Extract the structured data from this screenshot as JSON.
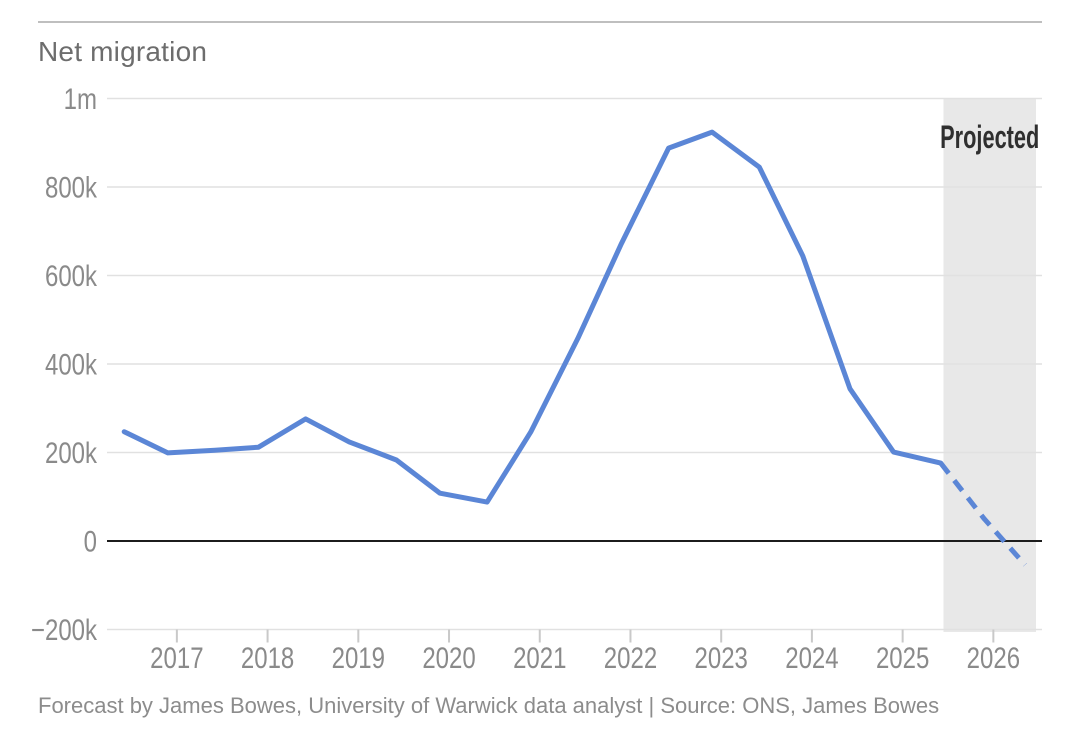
{
  "page": {
    "title": "Net migration",
    "footer": "Forecast by James Bowes, University of Warwick data analyst | Source: ONS, James Bowes"
  },
  "chart_data": {
    "type": "line",
    "title": "Net migration",
    "xlabel": "",
    "ylabel": "",
    "xlim": [
      2016.23,
      2026.47
    ],
    "ylim": [
      -200000,
      1000000
    ],
    "grid": "horizontal-only",
    "legend": "none",
    "x_ticks": [
      2017,
      2018,
      2019,
      2020,
      2021,
      2022,
      2023,
      2024,
      2025,
      2026
    ],
    "y_ticks": [
      {
        "value": 1000000,
        "label": "1m"
      },
      {
        "value": 800000,
        "label": "800k"
      },
      {
        "value": 600000,
        "label": "600k"
      },
      {
        "value": 400000,
        "label": "400k"
      },
      {
        "value": 200000,
        "label": "200k"
      },
      {
        "value": 0,
        "label": "0"
      },
      {
        "value": -200000,
        "label": "−200k"
      }
    ],
    "zero_line": true,
    "projection_band": {
      "label": "Projected",
      "from": 2025.45,
      "to": 2026.47
    },
    "series": [
      {
        "name": "Net migration (actual)",
        "style": "solid",
        "points": [
          [
            2016.42,
            247000
          ],
          [
            2016.9,
            199000
          ],
          [
            2017.42,
            205000
          ],
          [
            2017.9,
            212000
          ],
          [
            2018.42,
            276000
          ],
          [
            2018.9,
            224000
          ],
          [
            2019.42,
            183000
          ],
          [
            2019.9,
            108000
          ],
          [
            2020.42,
            88000
          ],
          [
            2020.9,
            246000
          ],
          [
            2021.42,
            458000
          ],
          [
            2021.9,
            672000
          ],
          [
            2022.42,
            888000
          ],
          [
            2022.9,
            924000
          ],
          [
            2023.42,
            845000
          ],
          [
            2023.9,
            644000
          ],
          [
            2024.42,
            344000
          ],
          [
            2024.9,
            201000
          ],
          [
            2025.42,
            176000
          ]
        ]
      },
      {
        "name": "Net migration (projected)",
        "style": "dashed",
        "points": [
          [
            2025.42,
            176000
          ],
          [
            2025.9,
            50000
          ],
          [
            2026.35,
            -54000
          ]
        ]
      }
    ]
  },
  "colors": {
    "line": "#5b86d6",
    "grid": "#e1e1e1",
    "zero_line": "#1c1c1c",
    "tick_mark": "#c9c9c9",
    "band": "#e8e8e8",
    "title_text": "#6d6d6d",
    "tick_text": "#8a8a8a",
    "footer_text": "#8c8c8c",
    "projected_text": "#2f2f2f",
    "top_rule": "#bfbfbf"
  }
}
